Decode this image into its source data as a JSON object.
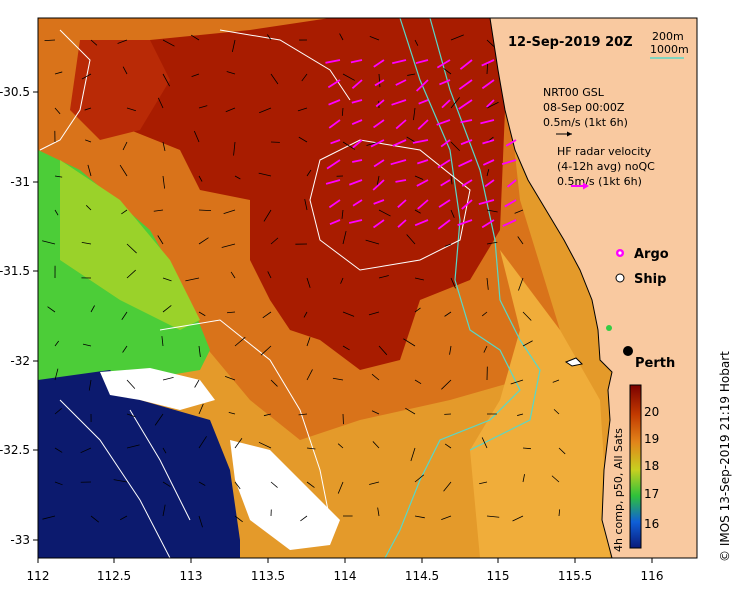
{
  "title": "12-Sep-2019 20Z",
  "scale": {
    "line1": "200m",
    "line2": "1000m",
    "color": "#58d8c8"
  },
  "legend": {
    "gsl_line1": "NRT00 GSL",
    "gsl_line2": "08-Sep 00:00Z",
    "gsl_line3": "0.5m/s (1kt 6h)",
    "hf_line1": "HF radar velocity",
    "hf_line2": "(4-12h avg) noQC",
    "hf_line3": "0.5m/s (1kt 6h)",
    "argo": "Argo",
    "ship": "Ship"
  },
  "place": {
    "perth": "Perth"
  },
  "colorbar": {
    "label": "4h comp, p50, All Sats",
    "ticks": [
      "20",
      "19",
      "18",
      "17",
      "16"
    ],
    "colors": [
      "#7a0000",
      "#c23a00",
      "#e2841a",
      "#c8d020",
      "#2fc23a",
      "#0f5fd8",
      "#0a1a7a"
    ]
  },
  "credit": "© IMOS 13-Sep-2019 21:19 Hobart",
  "axes": {
    "x_ticks": [
      "112",
      "112.5",
      "113",
      "113.5",
      "114",
      "114.5",
      "115",
      "115.5",
      "116"
    ],
    "y_ticks": [
      "-30.5",
      "-31",
      "-31.5",
      "-32",
      "-32.5",
      "-33"
    ]
  },
  "colors": {
    "land": "#f9c9a0",
    "warm_core": "#a81c00",
    "warm": "#d06410",
    "mid": "#e49a2a",
    "cool_green": "#4ccd38",
    "cold_blue": "#0c1a6e",
    "hf_arrow": "#ff00ff"
  },
  "icons": {
    "argo": "argo-float-icon",
    "ship": "ship-icon",
    "city": "city-dot-icon"
  }
}
